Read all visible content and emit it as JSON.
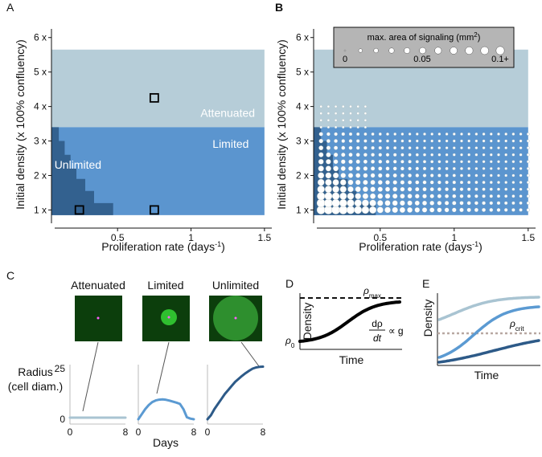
{
  "panels": {
    "A": "A",
    "B": "B",
    "C": "C",
    "D": "D",
    "E": "E"
  },
  "colors": {
    "attenuated": "#b6cdd8",
    "limited": "#5b95cf",
    "unlimited": "#33618f",
    "dark_line": "#2d5a88",
    "mid_line": "#5b9ad2",
    "light_line": "#a9c4d2",
    "crit_line": "#b8a8a2",
    "microscopy_bg": "#0c3e0c",
    "microscopy_spot": "#2fbf2f",
    "microscopy_center": "#ff60ff"
  },
  "chart_data": [
    {
      "id": "A",
      "type": "heatmap",
      "title": "",
      "xlabel": "Proliferation rate (days",
      "xlabel_sup": "-1",
      "xlabel_end": ")",
      "ylabel": "Initial density (x 100% confluency)",
      "xlim": [
        0.05,
        1.55
      ],
      "ylim": [
        0.8,
        6.25
      ],
      "x_ticks": [
        0.5,
        1,
        1.5
      ],
      "x_tick_labels": [
        "0.5",
        "1",
        "1.5"
      ],
      "y_ticks": [
        1,
        2,
        3,
        4,
        5,
        6
      ],
      "y_tick_labels": [
        "1 x",
        "2 x",
        "3 x",
        "4 x",
        "5 x",
        "6 x"
      ],
      "region_x": [
        0.05,
        1.5
      ],
      "attenuated_y": [
        3.4,
        5.65
      ],
      "limited_y": [
        0.85,
        3.4
      ],
      "unlimited_staircase": [
        [
          0.05,
          3.4
        ],
        [
          0.1,
          3.4
        ],
        [
          0.1,
          3.0
        ],
        [
          0.14,
          3.0
        ],
        [
          0.14,
          2.6
        ],
        [
          0.18,
          2.6
        ],
        [
          0.18,
          2.2
        ],
        [
          0.22,
          2.2
        ],
        [
          0.22,
          1.9
        ],
        [
          0.28,
          1.9
        ],
        [
          0.28,
          1.55
        ],
        [
          0.34,
          1.55
        ],
        [
          0.34,
          1.2
        ],
        [
          0.47,
          1.2
        ],
        [
          0.47,
          0.85
        ],
        [
          0.05,
          0.85
        ]
      ],
      "region_labels": [
        {
          "text": "Attenuated",
          "x": 1.25,
          "y": 3.7
        },
        {
          "text": "Limited",
          "x": 1.27,
          "y": 2.8
        },
        {
          "text": "Unlimited",
          "x": 0.23,
          "y": 2.2
        }
      ],
      "markers": [
        {
          "x": 0.75,
          "y": 4.25
        },
        {
          "x": 0.24,
          "y": 1.0
        },
        {
          "x": 0.75,
          "y": 1.0
        }
      ]
    },
    {
      "id": "B",
      "type": "scatter",
      "xlabel": "Proliferation rate (days",
      "xlabel_sup": "-1",
      "xlabel_end": ")",
      "ylabel": "Initial density (x 100% confluency)",
      "xlim": [
        0.05,
        1.55
      ],
      "ylim": [
        0.8,
        6.25
      ],
      "x_ticks": [
        0.5,
        1,
        1.5
      ],
      "x_tick_labels": [
        "0.5",
        "1",
        "1.5"
      ],
      "y_ticks": [
        1,
        2,
        3,
        4,
        5,
        6
      ],
      "y_tick_labels": [
        "1 x",
        "2 x",
        "3 x",
        "4 x",
        "5 x",
        "6 x"
      ],
      "grid": {
        "x_start": 0.1,
        "x_step": 0.05,
        "x_count": 29,
        "y_start": 1.0,
        "y_step": 0.2,
        "y_count": 16
      },
      "size_legend": {
        "title": "max. area of signaling (mm",
        "title_sup": "2",
        "title_end": ")",
        "labels": [
          "0",
          "0.05",
          "0.1+"
        ],
        "values": [
          0.0,
          0.01,
          0.02,
          0.03,
          0.04,
          0.05,
          0.06,
          0.07,
          0.08,
          0.09,
          0.1
        ]
      }
    },
    {
      "id": "C",
      "type": "line",
      "ylabel_line1": "Radius",
      "ylabel_line2": "(cell diam.)",
      "xlabel": "Days",
      "y_tick_labels": [
        "0",
        "25"
      ],
      "x_tick_labels": [
        "0",
        "8"
      ],
      "xlim": [
        0,
        8
      ],
      "ylim": [
        0,
        27
      ],
      "insets": [
        {
          "title": "Attenuated",
          "days": [
            0,
            1,
            2,
            3,
            4,
            5,
            6,
            7,
            8
          ],
          "radius": [
            0.8,
            0.8,
            0.8,
            0.8,
            0.8,
            0.8,
            0.8,
            0.8,
            0.8
          ]
        },
        {
          "title": "Limited",
          "days": [
            0,
            0.5,
            1,
            1.5,
            2,
            2.5,
            3,
            3.5,
            4,
            4.5,
            5,
            5.5,
            6,
            6.5,
            7,
            7.5,
            8
          ],
          "radius": [
            0,
            2.5,
            5,
            7,
            8.5,
            9.3,
            9.7,
            9.8,
            9.6,
            9.2,
            8.7,
            8.2,
            7.6,
            5,
            1,
            0.3,
            0
          ]
        },
        {
          "title": "Unlimited",
          "days": [
            0,
            0.5,
            1,
            1.5,
            2,
            2.5,
            3,
            3.5,
            4,
            4.5,
            5,
            5.5,
            6,
            6.5,
            7,
            7.5,
            8
          ],
          "radius": [
            0,
            2,
            5,
            7.5,
            10,
            12.5,
            14.5,
            16.5,
            18.5,
            20,
            21.5,
            22.8,
            24,
            25,
            25.6,
            25.9,
            26
          ]
        }
      ]
    },
    {
      "id": "D",
      "type": "line",
      "ylabel": "Density",
      "xlabel": "Time",
      "rho_max_label": "ρ",
      "rho_max_sub": "max",
      "rho0_label": "ρ",
      "rho0_sub": "0",
      "equation_num": "dρ",
      "equation_den": "dt",
      "equation_rhs": "∝ g",
      "series": [
        {
          "name": "logistic",
          "description": "sigmoid density growth"
        }
      ]
    },
    {
      "id": "E",
      "type": "line",
      "ylabel": "Density",
      "xlabel": "Time",
      "rho_crit_label": "ρ",
      "rho_crit_sub": "crit",
      "series": [
        {
          "name": "attenuated"
        },
        {
          "name": "limited"
        },
        {
          "name": "unlimited"
        }
      ]
    }
  ]
}
